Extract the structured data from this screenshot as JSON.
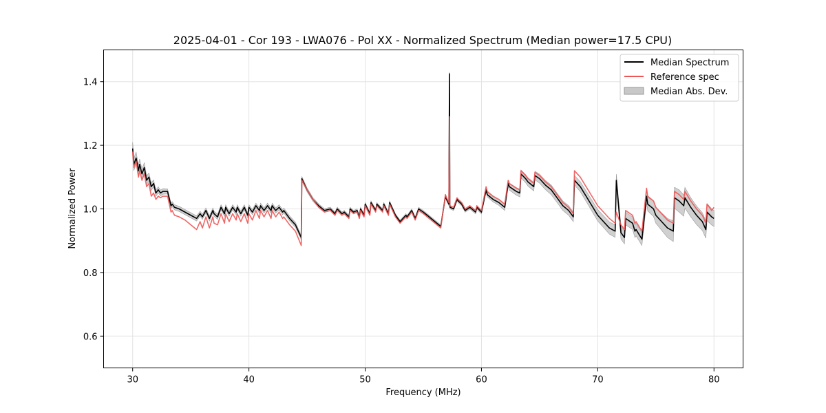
{
  "chart_data": {
    "type": "line",
    "title": "2025-04-01 - Cor 193 - LWA076 - Pol XX - Normalized Spectrum (Median power=17.5 CPU)",
    "xlabel": "Frequency (MHz)",
    "ylabel": "Normalized Power",
    "xlim": [
      27.5,
      82.5
    ],
    "ylim": [
      0.5,
      1.5
    ],
    "xticks": [
      30,
      40,
      50,
      60,
      70,
      80
    ],
    "xtick_labels": [
      "30",
      "40",
      "50",
      "60",
      "70",
      "80"
    ],
    "yticks": [
      0.6,
      0.8,
      1.0,
      1.2,
      1.4
    ],
    "ytick_labels": [
      "0.6",
      "0.8",
      "1.0",
      "1.2",
      "1.4"
    ],
    "grid": true,
    "legend_position": "top-right",
    "series": [
      {
        "name": "Median Spectrum",
        "color": "#000000",
        "x": [
          30.0,
          30.1,
          30.3,
          30.5,
          30.6,
          30.8,
          31.0,
          31.2,
          31.4,
          31.6,
          31.8,
          32.0,
          32.2,
          32.4,
          32.6,
          32.8,
          33.0,
          33.3,
          33.4,
          33.6,
          34.0,
          34.5,
          35.0,
          35.5,
          35.8,
          36.0,
          36.3,
          36.6,
          36.9,
          37.0,
          37.3,
          37.6,
          37.9,
          38.0,
          38.3,
          38.6,
          38.9,
          39.0,
          39.3,
          39.6,
          39.9,
          40.0,
          40.3,
          40.6,
          40.9,
          41.0,
          41.3,
          41.6,
          41.9,
          42.0,
          42.3,
          42.6,
          42.9,
          43.0,
          43.5,
          44.0,
          44.5,
          44.55,
          45.0,
          45.5,
          46.0,
          46.5,
          47.0,
          47.4,
          47.6,
          48.0,
          48.2,
          48.6,
          48.7,
          49.0,
          49.3,
          49.5,
          49.6,
          49.9,
          50.0,
          50.4,
          50.5,
          50.9,
          51.0,
          51.5,
          51.6,
          52.0,
          52.1,
          52.6,
          53.0,
          53.5,
          53.6,
          54.0,
          54.3,
          54.6,
          55.0,
          55.5,
          56.0,
          56.5,
          56.9,
          57.0,
          57.2,
          57.25,
          57.28,
          57.3,
          57.6,
          57.9,
          58.0,
          58.3,
          58.6,
          59.0,
          59.5,
          59.6,
          60.0,
          60.4,
          60.5,
          61.0,
          61.5,
          62.0,
          62.3,
          62.4,
          62.8,
          63.0,
          63.3,
          63.4,
          63.8,
          64.0,
          64.5,
          64.6,
          65.0,
          65.5,
          66.0,
          66.5,
          67.0,
          67.5,
          67.9,
          68.0,
          68.5,
          69.0,
          69.5,
          70.0,
          70.5,
          71.0,
          71.5,
          71.6,
          72.0,
          72.3,
          72.4,
          73.0,
          73.2,
          73.3,
          73.8,
          74.2,
          74.3,
          74.8,
          75.0,
          75.5,
          76.0,
          76.5,
          76.6,
          77.0,
          77.4,
          77.5,
          78.0,
          78.5,
          79.0,
          79.3,
          79.4,
          79.8,
          80.0
        ],
        "values": [
          1.19,
          1.14,
          1.16,
          1.12,
          1.14,
          1.11,
          1.13,
          1.09,
          1.1,
          1.07,
          1.08,
          1.05,
          1.06,
          1.05,
          1.055,
          1.055,
          1.055,
          1.01,
          1.015,
          1.005,
          1.0,
          0.99,
          0.98,
          0.97,
          0.985,
          0.975,
          0.995,
          0.97,
          0.995,
          0.985,
          0.975,
          1.005,
          0.985,
          1.005,
          0.985,
          1.005,
          0.99,
          1.005,
          0.985,
          1.005,
          0.98,
          1.005,
          0.99,
          1.01,
          0.995,
          1.01,
          0.995,
          1.01,
          0.995,
          1.01,
          0.995,
          1.005,
          0.99,
          0.995,
          0.97,
          0.95,
          0.91,
          1.095,
          1.06,
          1.03,
          1.01,
          0.995,
          1.0,
          0.985,
          1.0,
          0.985,
          0.99,
          0.975,
          1.0,
          0.99,
          0.995,
          0.975,
          1.0,
          0.98,
          1.015,
          0.985,
          1.02,
          0.995,
          1.015,
          0.995,
          1.015,
          0.985,
          1.02,
          0.98,
          0.96,
          0.98,
          0.975,
          0.995,
          0.97,
          1.0,
          0.99,
          0.975,
          0.96,
          0.945,
          1.04,
          1.03,
          1.015,
          1.425,
          1.01,
          1.005,
          1.0,
          1.03,
          1.025,
          1.015,
          0.995,
          1.005,
          0.99,
          1.005,
          0.99,
          1.06,
          1.045,
          1.03,
          1.02,
          1.005,
          1.08,
          1.07,
          1.06,
          1.055,
          1.05,
          1.11,
          1.095,
          1.085,
          1.07,
          1.105,
          1.095,
          1.075,
          1.06,
          1.035,
          1.01,
          0.995,
          0.975,
          1.09,
          1.07,
          1.04,
          1.01,
          0.98,
          0.96,
          0.94,
          0.93,
          1.09,
          0.925,
          0.91,
          0.97,
          0.955,
          0.93,
          0.935,
          0.905,
          1.04,
          1.015,
          1.0,
          0.98,
          0.96,
          0.94,
          0.93,
          1.035,
          1.025,
          1.01,
          1.035,
          1.005,
          0.98,
          0.96,
          0.935,
          0.99,
          0.975,
          0.97
        ]
      },
      {
        "name": "Reference spec",
        "color": "#ee5555",
        "x": [
          30.0,
          30.1,
          30.3,
          30.5,
          30.6,
          30.8,
          31.0,
          31.2,
          31.4,
          31.6,
          31.8,
          32.0,
          32.2,
          32.4,
          32.6,
          32.8,
          33.0,
          33.3,
          33.4,
          33.6,
          34.0,
          34.5,
          35.0,
          35.5,
          35.8,
          36.0,
          36.3,
          36.6,
          36.9,
          37.0,
          37.3,
          37.6,
          37.9,
          38.0,
          38.3,
          38.6,
          38.9,
          39.0,
          39.3,
          39.6,
          39.9,
          40.0,
          40.3,
          40.6,
          40.9,
          41.0,
          41.3,
          41.6,
          41.9,
          42.0,
          42.3,
          42.6,
          42.9,
          43.0,
          43.5,
          44.0,
          44.5,
          44.55,
          45.0,
          45.5,
          46.0,
          46.5,
          47.0,
          47.4,
          47.6,
          48.0,
          48.2,
          48.6,
          48.7,
          49.0,
          49.3,
          49.5,
          49.6,
          49.9,
          50.0,
          50.4,
          50.5,
          50.9,
          51.0,
          51.5,
          51.6,
          52.0,
          52.1,
          52.6,
          53.0,
          53.5,
          53.6,
          54.0,
          54.3,
          54.6,
          55.0,
          55.5,
          56.0,
          56.5,
          56.9,
          57.0,
          57.2,
          57.25,
          57.28,
          57.3,
          57.6,
          57.9,
          58.0,
          58.3,
          58.6,
          59.0,
          59.5,
          59.6,
          60.0,
          60.4,
          60.5,
          61.0,
          61.5,
          62.0,
          62.3,
          62.4,
          62.8,
          63.0,
          63.3,
          63.4,
          63.8,
          64.0,
          64.5,
          64.6,
          65.0,
          65.5,
          66.0,
          66.5,
          67.0,
          67.5,
          67.9,
          68.0,
          68.5,
          69.0,
          69.5,
          70.0,
          70.5,
          71.0,
          71.5,
          71.6,
          72.0,
          72.3,
          72.4,
          73.0,
          73.2,
          73.3,
          73.8,
          74.2,
          74.3,
          74.8,
          75.0,
          75.5,
          76.0,
          76.5,
          76.6,
          77.0,
          77.4,
          77.5,
          78.0,
          78.5,
          79.0,
          79.3,
          79.4,
          79.8,
          80.0
        ],
        "values": [
          1.18,
          1.13,
          1.15,
          1.1,
          1.12,
          1.09,
          1.11,
          1.07,
          1.08,
          1.04,
          1.05,
          1.03,
          1.04,
          1.035,
          1.04,
          1.04,
          1.04,
          0.99,
          0.995,
          0.98,
          0.975,
          0.965,
          0.95,
          0.935,
          0.96,
          0.94,
          0.975,
          0.94,
          0.975,
          0.955,
          0.95,
          0.985,
          0.955,
          0.985,
          0.96,
          0.985,
          0.965,
          0.985,
          0.96,
          0.985,
          0.955,
          0.985,
          0.965,
          0.995,
          0.97,
          0.995,
          0.975,
          0.995,
          0.97,
          0.995,
          0.975,
          0.99,
          0.97,
          0.975,
          0.95,
          0.93,
          0.885,
          1.09,
          1.06,
          1.03,
          1.005,
          0.99,
          0.995,
          0.98,
          0.995,
          0.98,
          0.985,
          0.97,
          0.995,
          0.985,
          0.99,
          0.97,
          0.995,
          0.975,
          1.01,
          0.98,
          1.015,
          0.99,
          1.01,
          0.99,
          1.01,
          0.98,
          1.015,
          0.975,
          0.955,
          0.975,
          0.97,
          0.99,
          0.965,
          0.995,
          0.985,
          0.97,
          0.955,
          0.94,
          1.045,
          1.035,
          1.02,
          1.29,
          1.015,
          1.01,
          1.005,
          1.035,
          1.03,
          1.02,
          1.0,
          1.01,
          0.995,
          1.01,
          0.995,
          1.07,
          1.055,
          1.04,
          1.03,
          1.015,
          1.09,
          1.08,
          1.07,
          1.065,
          1.06,
          1.12,
          1.105,
          1.095,
          1.08,
          1.115,
          1.105,
          1.085,
          1.07,
          1.045,
          1.02,
          1.005,
          0.985,
          1.12,
          1.1,
          1.07,
          1.04,
          1.01,
          0.99,
          0.97,
          0.955,
          0.99,
          0.95,
          0.935,
          0.995,
          0.98,
          0.955,
          0.96,
          0.93,
          1.065,
          1.04,
          1.025,
          1.005,
          0.985,
          0.965,
          0.955,
          1.055,
          1.045,
          1.03,
          1.055,
          1.025,
          1.0,
          0.98,
          0.955,
          1.015,
          0.995,
          1.005
        ]
      }
    ],
    "band": {
      "name": "Median Abs. Dev.",
      "color": "#999999",
      "base_series": "Median Spectrum",
      "x": [
        30.0,
        31.0,
        32.0,
        33.0,
        35.0,
        40.0,
        44.0,
        45.0,
        50.0,
        55.0,
        57.0,
        60.0,
        63.0,
        66.0,
        68.0,
        70.0,
        72.0,
        74.0,
        76.0,
        77.0,
        78.0,
        79.0,
        80.0
      ],
      "half_width": [
        0.02,
        0.015,
        0.01,
        0.008,
        0.008,
        0.008,
        0.008,
        0.006,
        0.005,
        0.005,
        0.005,
        0.006,
        0.012,
        0.015,
        0.015,
        0.018,
        0.02,
        0.02,
        0.03,
        0.035,
        0.03,
        0.028,
        0.025
      ]
    }
  },
  "legend": {
    "items": [
      {
        "label": "Median Spectrum",
        "kind": "line",
        "color": "#000000"
      },
      {
        "label": "Reference spec",
        "kind": "line",
        "color": "#ee5555"
      },
      {
        "label": "Median Abs. Dev.",
        "kind": "patch",
        "color": "#c8c8c8"
      }
    ]
  }
}
